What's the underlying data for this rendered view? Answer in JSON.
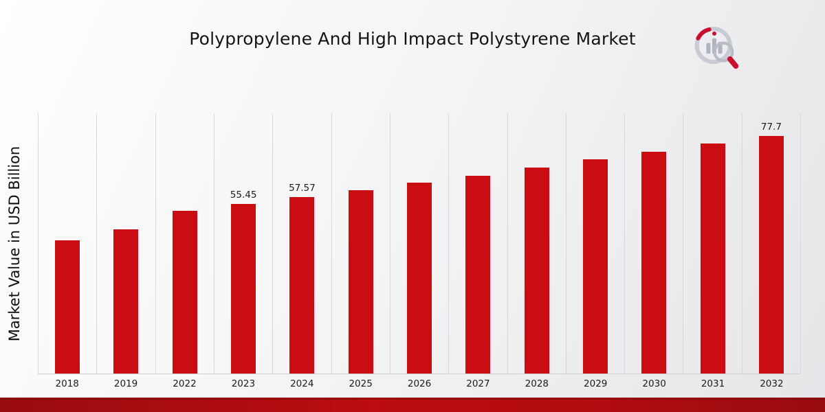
{
  "page": {
    "title": "Polypropylene And High Impact Polystyrene Market",
    "ylabel": "Market Value in USD Billion",
    "logo": "market-research-chart-magnifier-logo"
  },
  "colors": {
    "bar": "#c90d12",
    "accent_ribbon": "#a80c10",
    "grid": "#d8d8da"
  },
  "chart_data": {
    "type": "bar",
    "title": "Polypropylene And High Impact Polystyrene Market",
    "xlabel": "",
    "ylabel": "Market Value in USD Billion",
    "categories": [
      "2018",
      "2019",
      "2022",
      "2023",
      "2024",
      "2025",
      "2026",
      "2027",
      "2028",
      "2029",
      "2030",
      "2031",
      "2032"
    ],
    "values": [
      43.5,
      47.1,
      53.2,
      55.45,
      57.57,
      59.9,
      62.3,
      64.7,
      67.3,
      69.9,
      72.5,
      75.1,
      77.7
    ],
    "data_labels": [
      "",
      "",
      "",
      "55.45",
      "57.57",
      "",
      "",
      "",
      "",
      "",
      "",
      "",
      "77.7"
    ],
    "bar_color": "#c90d12",
    "ylim": [
      0,
      85
    ],
    "grid": "vertical-only",
    "legend_position": "none"
  }
}
